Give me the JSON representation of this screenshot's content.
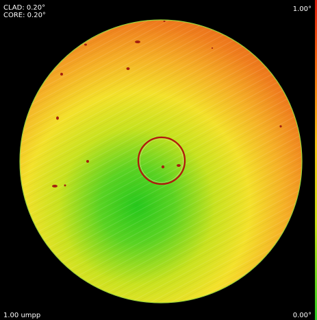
{
  "readouts": {
    "clad_label": "CLAD: 0.20°",
    "core_label": "CORE: 0.20°",
    "scale_max": "1.00°",
    "scale_min": "0.00°",
    "resolution": "1.00 umpp"
  },
  "colors": {
    "background": "#000000",
    "scale_high": "#e01f12",
    "scale_mid": "#f6c51c",
    "scale_low": "#2fcf24",
    "core_ring": "#b2140e"
  },
  "icons": {
    "fiber_endface": "fiber-endface-image",
    "core_marker": "core-ring-icon"
  }
}
